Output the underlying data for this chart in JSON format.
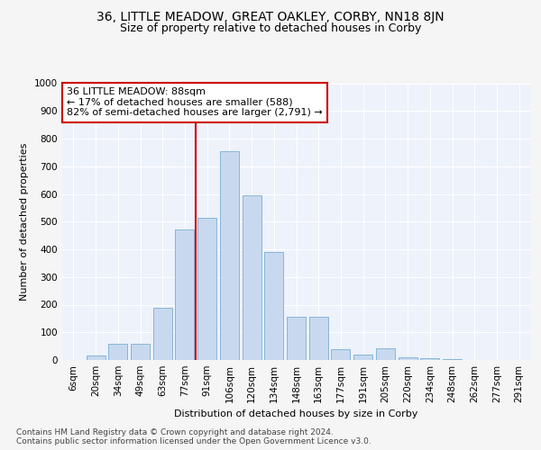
{
  "title1": "36, LITTLE MEADOW, GREAT OAKLEY, CORBY, NN18 8JN",
  "title2": "Size of property relative to detached houses in Corby",
  "xlabel": "Distribution of detached houses by size in Corby",
  "ylabel": "Number of detached properties",
  "categories": [
    "6sqm",
    "20sqm",
    "34sqm",
    "49sqm",
    "63sqm",
    "77sqm",
    "91sqm",
    "106sqm",
    "120sqm",
    "134sqm",
    "148sqm",
    "163sqm",
    "177sqm",
    "191sqm",
    "205sqm",
    "220sqm",
    "234sqm",
    "248sqm",
    "262sqm",
    "277sqm",
    "291sqm"
  ],
  "values": [
    0,
    15,
    60,
    60,
    190,
    470,
    515,
    755,
    595,
    390,
    155,
    157,
    38,
    20,
    43,
    10,
    5,
    3,
    0,
    0,
    0
  ],
  "bar_color": "#c8d9ef",
  "bar_edge_color": "#7aadd4",
  "vline_color": "#cc0000",
  "annotation_text": "36 LITTLE MEADOW: 88sqm\n← 17% of detached houses are smaller (588)\n82% of semi-detached houses are larger (2,791) →",
  "annotation_box_color": "#ffffff",
  "annotation_box_edge": "#cc0000",
  "ylim": [
    0,
    1000
  ],
  "yticks": [
    0,
    100,
    200,
    300,
    400,
    500,
    600,
    700,
    800,
    900,
    1000
  ],
  "footer": "Contains HM Land Registry data © Crown copyright and database right 2024.\nContains public sector information licensed under the Open Government Licence v3.0.",
  "bg_color": "#edf2fb",
  "grid_color": "#ffffff",
  "fig_bg_color": "#f5f5f5",
  "title1_fontsize": 10,
  "title2_fontsize": 9,
  "axis_label_fontsize": 8,
  "tick_fontsize": 7.5,
  "annotation_fontsize": 8,
  "footer_fontsize": 6.5
}
